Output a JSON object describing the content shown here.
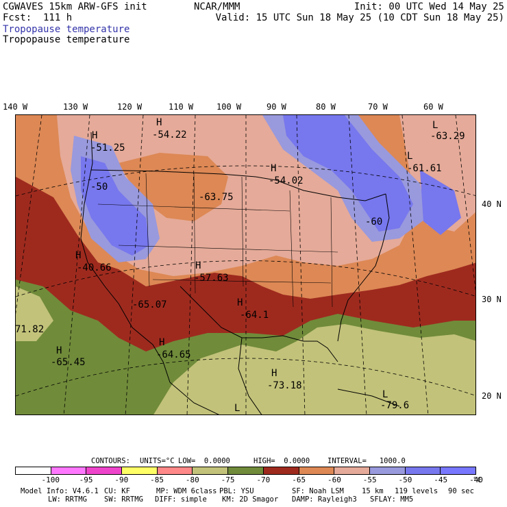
{
  "header": {
    "model": "CGWAVES 15km ARW-GFS init",
    "forecast": "Fcst:  111 h",
    "field1": "Tropopause temperature",
    "field2": "Tropopause temperature",
    "org": "NCAR/MMM",
    "init": "Init: 00 UTC Wed 14 May 25",
    "valid": "Valid: 15 UTC Sun 18 May 25 (10 CDT Sun 18 May 25)",
    "field1_color": "#3333aa"
  },
  "longitudes": [
    "140 W",
    "130 W",
    "120 W",
    "110 W",
    "100 W",
    "90 W",
    "80 W",
    "70 W",
    "60 W"
  ],
  "latitudes": [
    "40 N",
    "30 N",
    "20 N"
  ],
  "centers": [
    {
      "type": "H",
      "value": "-51.25"
    },
    {
      "type": "H",
      "value": "-54.22"
    },
    {
      "type": "H",
      "value": "-54.02"
    },
    {
      "type": "L",
      "value": "-63.29"
    },
    {
      "type": "L",
      "value": "-61.61"
    },
    {
      "type": "",
      "value": "-50"
    },
    {
      "type": "",
      "value": "-63.75"
    },
    {
      "type": "",
      "value": "-60"
    },
    {
      "type": "H",
      "value": "-40.66"
    },
    {
      "type": "H",
      "value": "-57.63"
    },
    {
      "type": "",
      "value": "-65.07"
    },
    {
      "type": "H",
      "value": "-64.1"
    },
    {
      "type": "",
      "value": "71.82"
    },
    {
      "type": "H",
      "value": "-65.45"
    },
    {
      "type": "H",
      "value": "-64.65"
    },
    {
      "type": "H",
      "value": "-73.18"
    },
    {
      "type": "L",
      "value": "-79.6"
    },
    {
      "type": "L",
      "value": ""
    }
  ],
  "contours": {
    "label": "CONTOURS:",
    "units": "UNITS=°C",
    "low": "LOW=  0.0000",
    "high": "HIGH=  0.0000",
    "interval": "INTERVAL=   1000.0"
  },
  "colorbar": {
    "colors": [
      "#ffffff",
      "#ff77ff",
      "#ee44cc",
      "#ffff66",
      "#ff8888",
      "#c2c27a",
      "#708b3a",
      "#9e2a1e",
      "#dd8855",
      "#e5aa99",
      "#9999dd",
      "#7777ee",
      "#7777ff"
    ],
    "labels": [
      "-100",
      "-95",
      "-90",
      "-85",
      "-80",
      "-75",
      "-70",
      "-65",
      "-60",
      "-55",
      "-50",
      "-45",
      "-40"
    ],
    "unit": "°C"
  },
  "footer": {
    "line1": {
      "model_info": "Model Info: V4.6.1",
      "cu": "CU: KF",
      "mp": "MP: WDM 6class",
      "pbl": "PBL: YSU",
      "sf": "SF: Noah LSM",
      "res": "15 km",
      "levels": "119 levels",
      "dt": "90 sec"
    },
    "line2": {
      "lw": "LW: RRTMG",
      "sw": "SW: RRTMG",
      "diff": "DIFF: simple",
      "km": "KM: 2D Smagor",
      "damp": "DAMP: Rayleigh3",
      "sflay": "SFLAY: MM5"
    }
  }
}
